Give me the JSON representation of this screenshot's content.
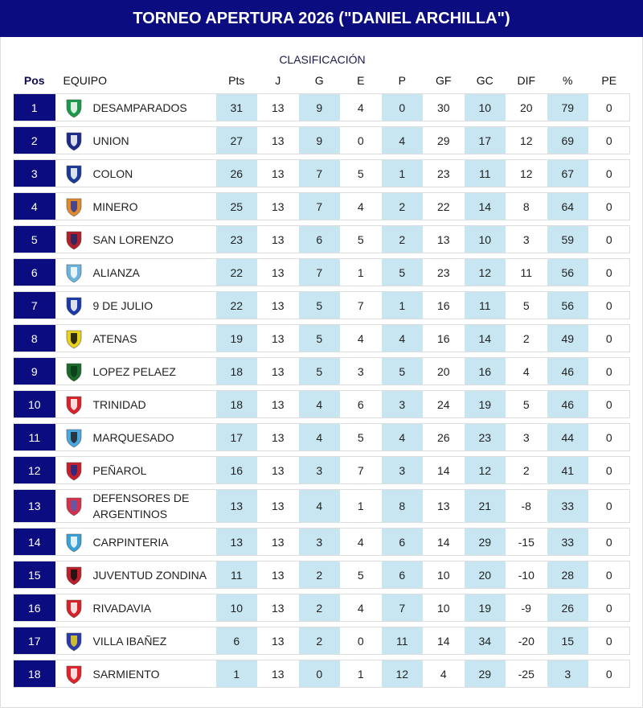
{
  "title": "TORNEO APERTURA 2026 (\"DANIEL ARCHILLA\")",
  "caption": "CLASIFICACIÓN",
  "colors": {
    "header_bg": "#0b0c80",
    "pos_bg": "#0b0c80",
    "shade": "#c7e6f2"
  },
  "columns": [
    "Pos",
    "EQUIPO",
    "Pts",
    "J",
    "G",
    "E",
    "P",
    "GF",
    "GC",
    "DIF",
    "%",
    "PE"
  ],
  "rows": [
    {
      "pos": "1",
      "team": "DESAMPARADOS",
      "crest": "green-white-shield",
      "c1": "#1a9a4a",
      "c2": "#ffffff",
      "stats": [
        "31",
        "13",
        "9",
        "4",
        "0",
        "30",
        "10",
        "20",
        "79",
        "0"
      ]
    },
    {
      "pos": "2",
      "team": "UNION",
      "crest": "blue-white-shield",
      "c1": "#1c2a8a",
      "c2": "#ffffff",
      "stats": [
        "27",
        "13",
        "9",
        "0",
        "4",
        "29",
        "17",
        "12",
        "69",
        "0"
      ]
    },
    {
      "pos": "3",
      "team": "COLON",
      "crest": "blue-badge",
      "c1": "#1a3a9a",
      "c2": "#ffffff",
      "stats": [
        "26",
        "13",
        "7",
        "5",
        "1",
        "23",
        "11",
        "12",
        "67",
        "0"
      ]
    },
    {
      "pos": "4",
      "team": "MINERO",
      "crest": "orange-blue-shield",
      "c1": "#e08a2a",
      "c2": "#2a3a9a",
      "stats": [
        "25",
        "13",
        "7",
        "4",
        "2",
        "22",
        "14",
        "8",
        "64",
        "0"
      ]
    },
    {
      "pos": "5",
      "team": "SAN LORENZO",
      "crest": "red-blue-shield",
      "c1": "#b21e2a",
      "c2": "#1a2a6a",
      "stats": [
        "23",
        "13",
        "6",
        "5",
        "2",
        "13",
        "10",
        "3",
        "59",
        "0"
      ]
    },
    {
      "pos": "6",
      "team": "ALIANZA",
      "crest": "skyblue-white-shield",
      "c1": "#6ab4e0",
      "c2": "#ffffff",
      "stats": [
        "22",
        "13",
        "7",
        "1",
        "5",
        "23",
        "12",
        "11",
        "56",
        "0"
      ]
    },
    {
      "pos": "7",
      "team": "9 DE JULIO",
      "crest": "blue-white-round",
      "c1": "#1a3aaa",
      "c2": "#ffffff",
      "stats": [
        "22",
        "13",
        "5",
        "7",
        "1",
        "16",
        "11",
        "5",
        "56",
        "0"
      ]
    },
    {
      "pos": "8",
      "team": "ATENAS",
      "crest": "yellow-black-shield",
      "c1": "#e8d21a",
      "c2": "#111111",
      "stats": [
        "19",
        "13",
        "5",
        "4",
        "4",
        "16",
        "14",
        "2",
        "49",
        "0"
      ]
    },
    {
      "pos": "9",
      "team": "LOPEZ PELAEZ",
      "crest": "green-shield",
      "c1": "#1a6a2a",
      "c2": "#0a3a1a",
      "stats": [
        "18",
        "13",
        "5",
        "3",
        "5",
        "20",
        "16",
        "4",
        "46",
        "0"
      ]
    },
    {
      "pos": "10",
      "team": "TRINIDAD",
      "crest": "red-white-shield",
      "c1": "#d8222a",
      "c2": "#ffffff",
      "stats": [
        "18",
        "13",
        "4",
        "6",
        "3",
        "24",
        "19",
        "5",
        "46",
        "0"
      ]
    },
    {
      "pos": "11",
      "team": "MARQUESADO",
      "crest": "skyblue-black-shield",
      "c1": "#4aa8e0",
      "c2": "#222222",
      "stats": [
        "17",
        "13",
        "4",
        "5",
        "4",
        "26",
        "23",
        "3",
        "44",
        "0"
      ]
    },
    {
      "pos": "12",
      "team": "PEÑAROL",
      "crest": "red-blue-stripes",
      "c1": "#c81e2a",
      "c2": "#1a2a8a",
      "stats": [
        "16",
        "13",
        "3",
        "7",
        "3",
        "14",
        "12",
        "2",
        "41",
        "0"
      ]
    },
    {
      "pos": "13",
      "team": "DEFENSORES DE ARGENTINOS",
      "crest": "red-blue-round",
      "c1": "#d8304a",
      "c2": "#5a5ab0",
      "stats": [
        "13",
        "13",
        "4",
        "1",
        "8",
        "13",
        "21",
        "-8",
        "33",
        "0"
      ]
    },
    {
      "pos": "14",
      "team": "CARPINTERIA",
      "crest": "skyblue-shield",
      "c1": "#3aa0d8",
      "c2": "#ffffff",
      "stats": [
        "13",
        "13",
        "3",
        "4",
        "6",
        "14",
        "29",
        "-15",
        "33",
        "0"
      ]
    },
    {
      "pos": "15",
      "team": "JUVENTUD ZONDINA",
      "crest": "red-black-shield",
      "c1": "#c01e2a",
      "c2": "#111111",
      "stats": [
        "11",
        "13",
        "2",
        "5",
        "6",
        "10",
        "20",
        "-10",
        "28",
        "0"
      ]
    },
    {
      "pos": "16",
      "team": "RIVADAVIA",
      "crest": "red-white-stripes",
      "c1": "#d8222a",
      "c2": "#ffffff",
      "stats": [
        "10",
        "13",
        "2",
        "4",
        "7",
        "10",
        "19",
        "-9",
        "26",
        "0"
      ]
    },
    {
      "pos": "17",
      "team": "VILLA IBAÑEZ",
      "crest": "blue-yellow-shield",
      "c1": "#2a3aaa",
      "c2": "#e8d21a",
      "stats": [
        "6",
        "13",
        "2",
        "0",
        "11",
        "14",
        "34",
        "-20",
        "15",
        "0"
      ]
    },
    {
      "pos": "18",
      "team": "SARMIENTO",
      "crest": "red-white-shield",
      "c1": "#e0222a",
      "c2": "#ffffff",
      "stats": [
        "1",
        "13",
        "0",
        "1",
        "12",
        "4",
        "29",
        "-25",
        "3",
        "0"
      ]
    }
  ]
}
